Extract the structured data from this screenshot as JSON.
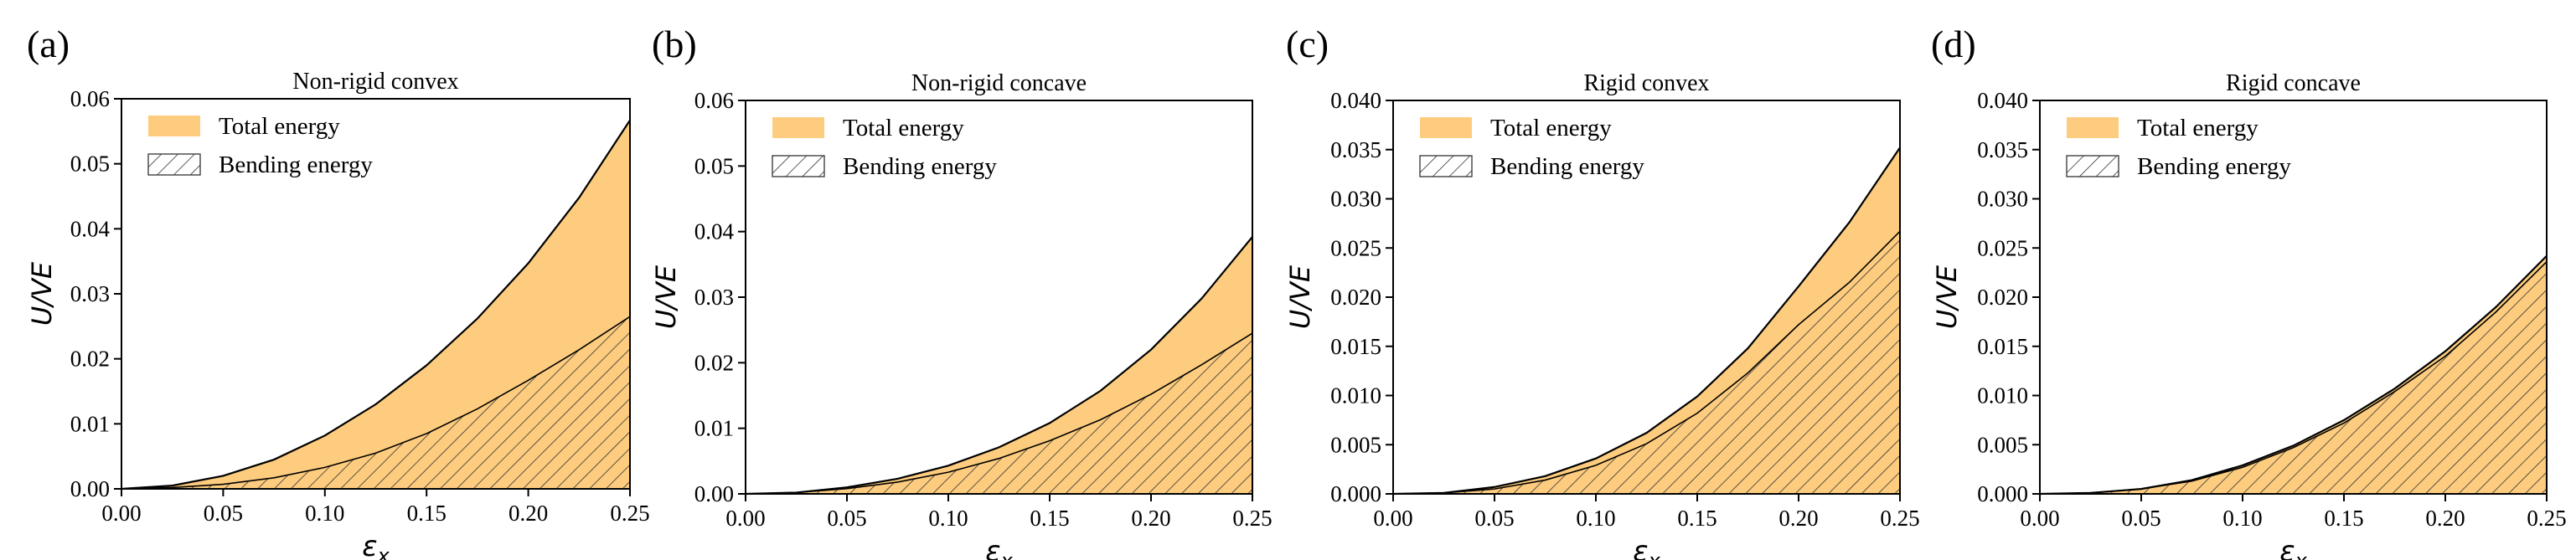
{
  "figure": {
    "panels_count": 4
  },
  "colors": {
    "total_fill": "#FDCC7E",
    "line": "#000000",
    "hatch": "#333333",
    "frame": "#000000",
    "background": "#FFFFFF"
  },
  "chart_data": [
    {
      "panel_label": "(a)",
      "title": "Non-rigid convex",
      "type": "area",
      "xlabel": "ε",
      "xlabel_sub": "x",
      "ylabel": "U/VE",
      "xlim": [
        0,
        0.25
      ],
      "ylim": [
        0,
        0.06
      ],
      "xticks": [
        0.0,
        0.05,
        0.1,
        0.15,
        0.2,
        0.25
      ],
      "xtick_labels": [
        "0.00",
        "0.05",
        "0.10",
        "0.15",
        "0.20",
        "0.25"
      ],
      "yticks": [
        0.0,
        0.01,
        0.02,
        0.03,
        0.04,
        0.05,
        0.06
      ],
      "ytick_labels": [
        "0.00",
        "0.01",
        "0.02",
        "0.03",
        "0.04",
        "0.05",
        "0.06"
      ],
      "legend": {
        "position": "top-left",
        "entries": [
          "Total energy",
          "Bending energy"
        ]
      },
      "x": [
        0.0,
        0.025,
        0.05,
        0.075,
        0.1,
        0.125,
        0.15,
        0.175,
        0.2,
        0.225,
        0.25
      ],
      "series": [
        {
          "name": "Total energy",
          "values": [
            0.0,
            0.0005,
            0.002,
            0.0045,
            0.0082,
            0.013,
            0.019,
            0.0262,
            0.0347,
            0.0448,
            0.0567
          ]
        },
        {
          "name": "Bending energy",
          "values": [
            0.0,
            0.0002,
            0.0007,
            0.0017,
            0.0033,
            0.0055,
            0.0085,
            0.0123,
            0.0167,
            0.0214,
            0.0265
          ]
        }
      ]
    },
    {
      "panel_label": "(b)",
      "title": "Non-rigid concave",
      "type": "area",
      "xlabel": "ε",
      "xlabel_sub": "x",
      "ylabel": "U/VE",
      "xlim": [
        0,
        0.25
      ],
      "ylim": [
        0,
        0.06
      ],
      "xticks": [
        0.0,
        0.05,
        0.1,
        0.15,
        0.2,
        0.25
      ],
      "xtick_labels": [
        "0.00",
        "0.05",
        "0.10",
        "0.15",
        "0.20",
        "0.25"
      ],
      "yticks": [
        0.0,
        0.01,
        0.02,
        0.03,
        0.04,
        0.05,
        0.06
      ],
      "ytick_labels": [
        "0.00",
        "0.01",
        "0.02",
        "0.03",
        "0.04",
        "0.05",
        "0.06"
      ],
      "legend": {
        "position": "top-left",
        "entries": [
          "Total energy",
          "Bending energy"
        ]
      },
      "x": [
        0.0,
        0.025,
        0.05,
        0.075,
        0.1,
        0.125,
        0.15,
        0.175,
        0.2,
        0.225,
        0.25
      ],
      "series": [
        {
          "name": "Total energy",
          "values": [
            0.0,
            0.0002,
            0.001,
            0.0023,
            0.0043,
            0.0071,
            0.0108,
            0.0157,
            0.022,
            0.0298,
            0.0392
          ]
        },
        {
          "name": "Bending energy",
          "values": [
            0.0,
            0.0002,
            0.0008,
            0.0018,
            0.0033,
            0.0054,
            0.0081,
            0.0113,
            0.0152,
            0.0197,
            0.0245
          ]
        }
      ]
    },
    {
      "panel_label": "(c)",
      "title": "Rigid convex",
      "type": "area",
      "xlabel": "ε",
      "xlabel_sub": "x",
      "ylabel": "U/VE",
      "xlim": [
        0,
        0.25
      ],
      "ylim": [
        0,
        0.04
      ],
      "xticks": [
        0.0,
        0.05,
        0.1,
        0.15,
        0.2,
        0.25
      ],
      "xtick_labels": [
        "0.00",
        "0.05",
        "0.10",
        "0.15",
        "0.20",
        "0.25"
      ],
      "yticks": [
        0.0,
        0.005,
        0.01,
        0.015,
        0.02,
        0.025,
        0.03,
        0.035,
        0.04
      ],
      "ytick_labels": [
        "0.000",
        "0.005",
        "0.010",
        "0.015",
        "0.020",
        "0.025",
        "0.030",
        "0.035",
        "0.040"
      ],
      "legend": {
        "position": "top-left",
        "entries": [
          "Total energy",
          "Bending energy"
        ]
      },
      "x": [
        0.0,
        0.025,
        0.05,
        0.075,
        0.1,
        0.125,
        0.15,
        0.175,
        0.2,
        0.225,
        0.25
      ],
      "series": [
        {
          "name": "Total energy",
          "values": [
            0.0,
            0.0001,
            0.0007,
            0.0018,
            0.0036,
            0.0062,
            0.0099,
            0.0148,
            0.0211,
            0.0276,
            0.0352
          ]
        },
        {
          "name": "Bending energy",
          "values": [
            0.0,
            0.0001,
            0.0005,
            0.0014,
            0.0029,
            0.0051,
            0.0082,
            0.0123,
            0.0172,
            0.0215,
            0.0267
          ]
        }
      ]
    },
    {
      "panel_label": "(d)",
      "title": "Rigid concave",
      "type": "area",
      "xlabel": "ε",
      "xlabel_sub": "x",
      "ylabel": "U/VE",
      "xlim": [
        0,
        0.25
      ],
      "ylim": [
        0,
        0.04
      ],
      "xticks": [
        0.0,
        0.05,
        0.1,
        0.15,
        0.2,
        0.25
      ],
      "xtick_labels": [
        "0.00",
        "0.05",
        "0.10",
        "0.15",
        "0.20",
        "0.25"
      ],
      "yticks": [
        0.0,
        0.005,
        0.01,
        0.015,
        0.02,
        0.025,
        0.03,
        0.035,
        0.04
      ],
      "ytick_labels": [
        "0.000",
        "0.005",
        "0.010",
        "0.015",
        "0.020",
        "0.025",
        "0.030",
        "0.035",
        "0.040"
      ],
      "legend": {
        "position": "top-left",
        "entries": [
          "Total energy",
          "Bending energy"
        ]
      },
      "x": [
        0.0,
        0.025,
        0.05,
        0.075,
        0.1,
        0.125,
        0.15,
        0.175,
        0.2,
        0.225,
        0.25
      ],
      "series": [
        {
          "name": "Total energy",
          "values": [
            0.0,
            0.0001,
            0.0005,
            0.0014,
            0.0029,
            0.0049,
            0.0075,
            0.0107,
            0.0145,
            0.019,
            0.0242
          ]
        },
        {
          "name": "Bending energy",
          "values": [
            0.0,
            0.0001,
            0.0005,
            0.0013,
            0.0027,
            0.0047,
            0.0072,
            0.0104,
            0.014,
            0.0185,
            0.0236
          ]
        }
      ]
    }
  ]
}
